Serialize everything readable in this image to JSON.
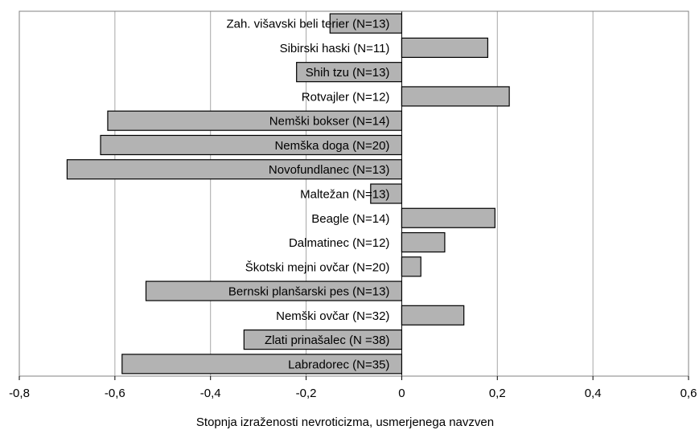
{
  "chart_data": {
    "type": "bar",
    "orientation": "horizontal",
    "categories": [
      "Zah. višavski beli terier (N=13)",
      "Sibirski haski (N=11)",
      "Shih tzu (N=13)",
      "Rotvajler (N=12)",
      "Nemški bokser (N=14)",
      "Nemška doga (N=20)",
      "Novofundlanec (N=13)",
      "Maltežan (N=13)",
      "Beagle (N=14)",
      "Dalmatinec (N=12)",
      "Škotski mejni ovčar (N=20)",
      "Bernski planšarski pes (N=13)",
      "Nemški ovčar (N=32)",
      "Zlati prinašalec (N =38)",
      "Labradorec (N=35)"
    ],
    "values": [
      -0.15,
      0.18,
      -0.22,
      0.225,
      -0.615,
      -0.63,
      -0.7,
      -0.065,
      0.195,
      0.09,
      0.04,
      -0.535,
      0.13,
      -0.33,
      -0.585
    ],
    "xlim": [
      -0.8,
      0.6
    ],
    "xticks": [
      -0.8,
      -0.6,
      -0.4,
      -0.2,
      0,
      0.2,
      0.4,
      0.6
    ],
    "xtick_labels": [
      "-0,8",
      "-0,6",
      "-0,4",
      "-0,2",
      "0",
      "0,2",
      "0,4",
      "0,6"
    ],
    "xlabel": "Stopnja izraženosti nevroticizma, usmerjenega navzven",
    "ylabel": "",
    "title": "",
    "grid": "vertical",
    "legend": "none",
    "colors": {
      "bar_fill": "#b3b3b3",
      "bar_stroke": "#000000",
      "grid": "#a6a6a6",
      "frame": "#808080"
    }
  }
}
